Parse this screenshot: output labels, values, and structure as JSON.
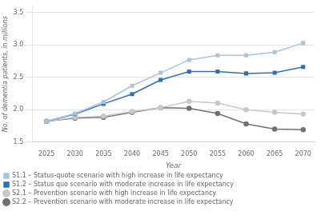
{
  "chart_data": {
    "type": "line",
    "x": [
      2025,
      2030,
      2035,
      2040,
      2045,
      2050,
      2055,
      2060,
      2065,
      2070
    ],
    "series": [
      {
        "name": "S1.1 – Status-quote scenario with high increase in life expectancy",
        "color": "#a8c4e0",
        "marker": "square",
        "values": [
          1.82,
          1.94,
          2.12,
          2.37,
          2.57,
          2.77,
          2.84,
          2.84,
          2.89,
          3.03
        ]
      },
      {
        "name": "S1.2 – Status quo scenario with moderate increase in life expectancy",
        "color": "#2e6fba",
        "marker": "square",
        "values": [
          1.82,
          1.93,
          2.09,
          2.24,
          2.46,
          2.59,
          2.59,
          2.56,
          2.57,
          2.66
        ]
      },
      {
        "name": "S2.1 – Prevention scenario with high increase in life expectancy",
        "color": "#c8c8c8",
        "marker": "circle",
        "values": [
          1.82,
          1.88,
          1.9,
          1.97,
          2.03,
          2.13,
          2.1,
          2.0,
          1.96,
          1.93
        ]
      },
      {
        "name": "S2.2 – Prevention scenario with moderate increase in life expectancy",
        "color": "#707070",
        "marker": "circle",
        "values": [
          1.82,
          1.87,
          1.88,
          1.96,
          2.03,
          2.02,
          1.94,
          1.78,
          1.7,
          1.69
        ]
      }
    ],
    "x_label": "Year",
    "y_label": "No. of dementia patients, in millions",
    "xlim": [
      2022.5,
      2072
    ],
    "xticks": [
      2025,
      2030,
      2035,
      2040,
      2045,
      2050,
      2055,
      2060,
      2065,
      2070
    ],
    "ylim": [
      1.5,
      3.6
    ],
    "yticks": [
      1.5,
      {
        "value": 2,
        "label": "2.0"
      },
      2.5,
      {
        "value": 3,
        "label": "3.0"
      },
      3.5
    ],
    "grid": "y",
    "legend": "bottom"
  }
}
